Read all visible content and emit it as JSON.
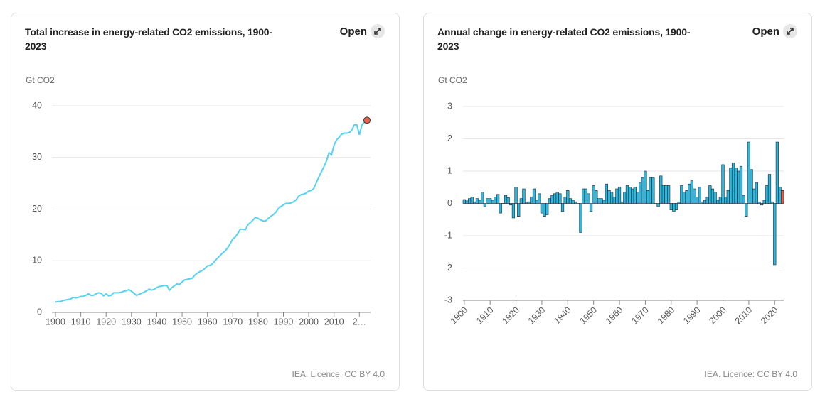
{
  "chart_data": [
    {
      "type": "line",
      "title": "Total increase in energy-related CO2 emissions, 1900-2023",
      "y_label": "Gt CO2",
      "open_button": "Open",
      "source": "IEA. Licence: CC BY 4.0",
      "color": "#55d2f2",
      "marker_color": "#e8604c",
      "x": [
        1900,
        1901,
        1902,
        1903,
        1904,
        1905,
        1906,
        1907,
        1908,
        1909,
        1910,
        1911,
        1912,
        1913,
        1914,
        1915,
        1916,
        1917,
        1918,
        1919,
        1920,
        1921,
        1922,
        1923,
        1924,
        1925,
        1926,
        1927,
        1928,
        1929,
        1930,
        1931,
        1932,
        1933,
        1934,
        1935,
        1936,
        1937,
        1938,
        1939,
        1940,
        1941,
        1942,
        1943,
        1944,
        1945,
        1946,
        1947,
        1948,
        1949,
        1950,
        1951,
        1952,
        1953,
        1954,
        1955,
        1956,
        1957,
        1958,
        1959,
        1960,
        1961,
        1962,
        1963,
        1964,
        1965,
        1966,
        1967,
        1968,
        1969,
        1970,
        1971,
        1972,
        1973,
        1974,
        1975,
        1976,
        1977,
        1978,
        1979,
        1980,
        1981,
        1982,
        1983,
        1984,
        1985,
        1986,
        1987,
        1988,
        1989,
        1990,
        1991,
        1992,
        1993,
        1994,
        1995,
        1996,
        1997,
        1998,
        1999,
        2000,
        2001,
        2002,
        2003,
        2004,
        2005,
        2006,
        2007,
        2008,
        2009,
        2010,
        2011,
        2012,
        2013,
        2014,
        2015,
        2016,
        2017,
        2018,
        2019,
        2020,
        2021,
        2022,
        2023
      ],
      "values": [
        2.0,
        2.1,
        2.1,
        2.3,
        2.4,
        2.5,
        2.6,
        2.9,
        2.8,
        2.9,
        3.1,
        3.1,
        3.3,
        3.6,
        3.3,
        3.3,
        3.6,
        3.8,
        3.7,
        3.2,
        3.6,
        3.2,
        3.3,
        3.8,
        3.8,
        3.8,
        3.9,
        4.1,
        4.2,
        4.4,
        4.1,
        3.7,
        3.3,
        3.5,
        3.7,
        3.9,
        4.2,
        4.5,
        4.3,
        4.5,
        4.8,
        5.0,
        5.1,
        5.2,
        5.2,
        4.3,
        4.8,
        5.2,
        5.5,
        5.4,
        5.9,
        6.3,
        6.4,
        6.5,
        6.6,
        7.2,
        7.6,
        7.9,
        8.1,
        8.5,
        9.0,
        9.1,
        9.4,
        10.0,
        10.5,
        11.0,
        11.5,
        11.9,
        12.5,
        13.3,
        14.2,
        14.6,
        15.3,
        16.1,
        16.1,
        16.0,
        17.0,
        17.4,
        17.9,
        18.4,
        18.2,
        17.9,
        17.7,
        17.7,
        18.2,
        18.6,
        18.9,
        19.4,
        20.1,
        20.5,
        20.8,
        21.1,
        21.1,
        21.2,
        21.4,
        21.8,
        22.5,
        22.8,
        22.9,
        23.1,
        23.5,
        23.6,
        24.0,
        25.1,
        26.2,
        27.2,
        28.2,
        29.3,
        30.9,
        30.5,
        32.4,
        33.4,
        33.9,
        34.5,
        34.7,
        34.7,
        34.8,
        35.3,
        36.3,
        36.3,
        34.4,
        36.3,
        36.8,
        37.2
      ],
      "xlim": [
        1900,
        2023
      ],
      "xticks": [
        1900,
        1910,
        1920,
        1930,
        1940,
        1950,
        1960,
        1970,
        1980,
        1990,
        2000,
        2010,
        {
          "value": 2020,
          "label": "2…"
        }
      ],
      "ylim": [
        0,
        40
      ],
      "yticks": [
        0,
        10,
        20,
        30,
        40
      ],
      "grid": true
    },
    {
      "type": "bar",
      "title": "Annual change in energy-related CO2 emissions, 1900-2023",
      "y_label": "Gt CO2",
      "open_button": "Open",
      "source": "IEA. Licence: CC BY 4.0",
      "color": "#2db8e0",
      "last_color": "#e8604c",
      "x": [
        1900,
        1901,
        1902,
        1903,
        1904,
        1905,
        1906,
        1907,
        1908,
        1909,
        1910,
        1911,
        1912,
        1913,
        1914,
        1915,
        1916,
        1917,
        1918,
        1919,
        1920,
        1921,
        1922,
        1923,
        1924,
        1925,
        1926,
        1927,
        1928,
        1929,
        1930,
        1931,
        1932,
        1933,
        1934,
        1935,
        1936,
        1937,
        1938,
        1939,
        1940,
        1941,
        1942,
        1943,
        1944,
        1945,
        1946,
        1947,
        1948,
        1949,
        1950,
        1951,
        1952,
        1953,
        1954,
        1955,
        1956,
        1957,
        1958,
        1959,
        1960,
        1961,
        1962,
        1963,
        1964,
        1965,
        1966,
        1967,
        1968,
        1969,
        1970,
        1971,
        1972,
        1973,
        1974,
        1975,
        1976,
        1977,
        1978,
        1979,
        1980,
        1981,
        1982,
        1983,
        1984,
        1985,
        1986,
        1987,
        1988,
        1989,
        1990,
        1991,
        1992,
        1993,
        1994,
        1995,
        1996,
        1997,
        1998,
        1999,
        2000,
        2001,
        2002,
        2003,
        2004,
        2005,
        2006,
        2007,
        2008,
        2009,
        2010,
        2011,
        2012,
        2013,
        2014,
        2015,
        2016,
        2017,
        2018,
        2019,
        2020,
        2021,
        2022,
        2023
      ],
      "values": [
        0.12,
        0.08,
        0.15,
        0.2,
        0.05,
        0.15,
        0.1,
        0.35,
        -0.1,
        0.15,
        0.15,
        0.1,
        0.2,
        0.28,
        -0.3,
        0.0,
        0.25,
        0.18,
        -0.05,
        -0.45,
        0.5,
        -0.4,
        0.15,
        0.45,
        0.05,
        0.05,
        0.2,
        0.45,
        0.1,
        0.3,
        -0.3,
        -0.4,
        -0.35,
        0.15,
        0.25,
        0.3,
        0.35,
        0.3,
        -0.25,
        0.2,
        0.4,
        0.15,
        0.1,
        0.05,
        -0.02,
        -0.9,
        0.45,
        0.45,
        0.3,
        -0.25,
        0.55,
        0.4,
        0.15,
        0.15,
        0.1,
        0.6,
        0.4,
        0.35,
        0.2,
        0.45,
        0.5,
        0.05,
        0.35,
        0.55,
        0.5,
        0.45,
        0.5,
        0.35,
        0.65,
        0.8,
        1.0,
        0.4,
        0.8,
        0.8,
        -0.02,
        -0.1,
        0.85,
        0.55,
        0.55,
        0.55,
        -0.2,
        -0.25,
        -0.2,
        0.05,
        0.55,
        0.35,
        0.4,
        0.6,
        0.7,
        0.45,
        0.2,
        0.5,
        0.05,
        0.1,
        0.2,
        0.55,
        0.45,
        0.35,
        0.1,
        0.2,
        1.2,
        0.2,
        0.4,
        1.1,
        1.25,
        1.1,
        1.0,
        1.15,
        0.25,
        -0.4,
        1.9,
        1.05,
        0.45,
        0.65,
        0.05,
        -0.05,
        0.1,
        0.55,
        0.9,
        0.05,
        -1.9,
        1.9,
        0.5,
        0.4
      ],
      "xlim": [
        1899.5,
        2023.5
      ],
      "xticks": [
        1900,
        1910,
        1920,
        1930,
        1940,
        1950,
        1960,
        1970,
        1980,
        1990,
        2000,
        2010,
        2020
      ],
      "ylim": [
        -3,
        3
      ],
      "yticks": [
        -3,
        -2,
        -1,
        0,
        1,
        2,
        3
      ],
      "grid": true
    }
  ]
}
